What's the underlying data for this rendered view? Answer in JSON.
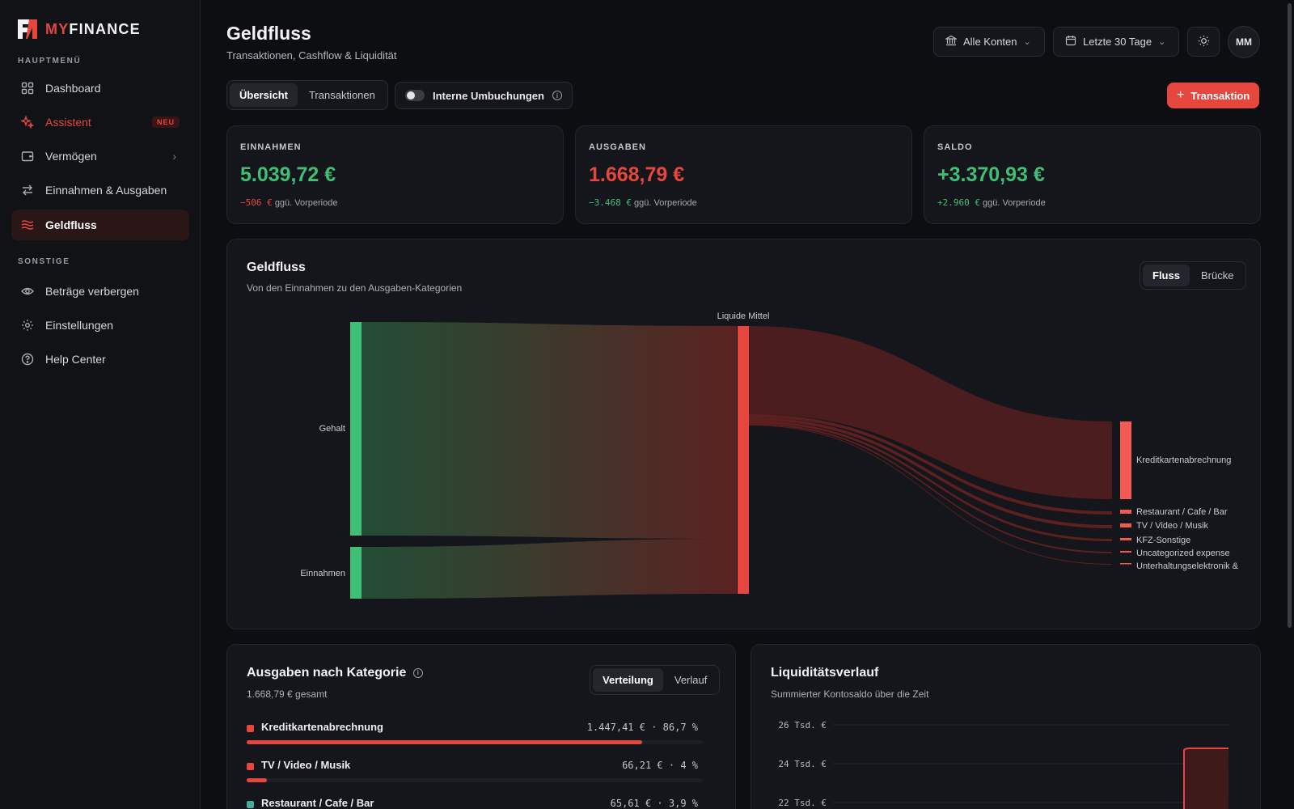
{
  "app": {
    "logo_my": "MY",
    "logo_finance": "FINANCE"
  },
  "sidebar": {
    "section_main": "HAUPTMENÜ",
    "section_other": "SONSTIGE",
    "items": [
      {
        "label": "Dashboard"
      },
      {
        "label": "Assistent",
        "badge": "NEU"
      },
      {
        "label": "Vermögen"
      },
      {
        "label": "Einnahmen & Ausgaben"
      },
      {
        "label": "Geldfluss"
      }
    ],
    "other_items": [
      {
        "label": "Beträge verbergen"
      },
      {
        "label": "Einstellungen"
      },
      {
        "label": "Help Center"
      }
    ]
  },
  "header": {
    "title": "Geldfluss",
    "subtitle": "Transaktionen, Cashflow & Liquidität",
    "accounts_label": "Alle Konten",
    "period_label": "Letzte 30 Tage",
    "avatar": "MM"
  },
  "tabs": {
    "overview": "Übersicht",
    "transactions": "Transaktionen",
    "internal_toggle": "Interne Umbuchungen",
    "add_button": "Transaktion"
  },
  "kpis": [
    {
      "label": "EINNAHMEN",
      "value": "5.039,72 €",
      "delta": "−506 €",
      "delta_suffix": "ggü. Vorperiode"
    },
    {
      "label": "AUSGABEN",
      "value": "1.668,79 €",
      "delta": "−3.468 €",
      "delta_suffix": "ggü. Vorperiode"
    },
    {
      "label": "SALDO",
      "value": "+3.370,93 €",
      "delta": "+2.960 €",
      "delta_suffix": "ggü. Vorperiode"
    }
  ],
  "sankey": {
    "title": "Geldfluss",
    "subtitle": "Von den Einnahmen zu den Ausgaben-Kategorien",
    "mode_flow": "Fluss",
    "mode_bridge": "Brücke",
    "center_label": "Liquide Mittel",
    "sources": [
      {
        "label": "Gehalt"
      },
      {
        "label": "Einnahmen"
      }
    ],
    "targets": [
      {
        "label": "Kreditkartenabrechnung"
      },
      {
        "label": "Restaurant / Cafe / Bar"
      },
      {
        "label": "TV / Video / Musik"
      },
      {
        "label": "KFZ-Sonstige"
      },
      {
        "label": "Uncategorized expense"
      },
      {
        "label": "Unterhaltungselektronik &"
      }
    ]
  },
  "categories": {
    "title": "Ausgaben nach Kategorie",
    "total": "1.668,79 € gesamt",
    "mode_distribution": "Verteilung",
    "mode_history": "Verlauf",
    "items": [
      {
        "name": "Kreditkartenabrechnung",
        "value": "1.447,41 € · 86,7 %",
        "share": 86.7,
        "color": "#e5473e"
      },
      {
        "name": "TV / Video / Musik",
        "value": "66,21 € · 4 %",
        "share": 4,
        "color": "#e5473e"
      },
      {
        "name": "Restaurant / Cafe / Bar",
        "value": "65,61 € · 3,9 %",
        "share": 3.9,
        "color": "#3fae9c"
      }
    ]
  },
  "liquidity": {
    "title": "Liquiditätsverlauf",
    "subtitle": "Summierter Kontosaldo über die Zeit",
    "chart_data": {
      "type": "line",
      "ytick_labels": [
        "26 Tsd. €",
        "24 Tsd. €",
        "22 Tsd. €"
      ]
    }
  },
  "colors": {
    "accent": "#e5473e",
    "positive": "#3fbf74",
    "background": "#0d0e12",
    "card": "#15161b"
  }
}
